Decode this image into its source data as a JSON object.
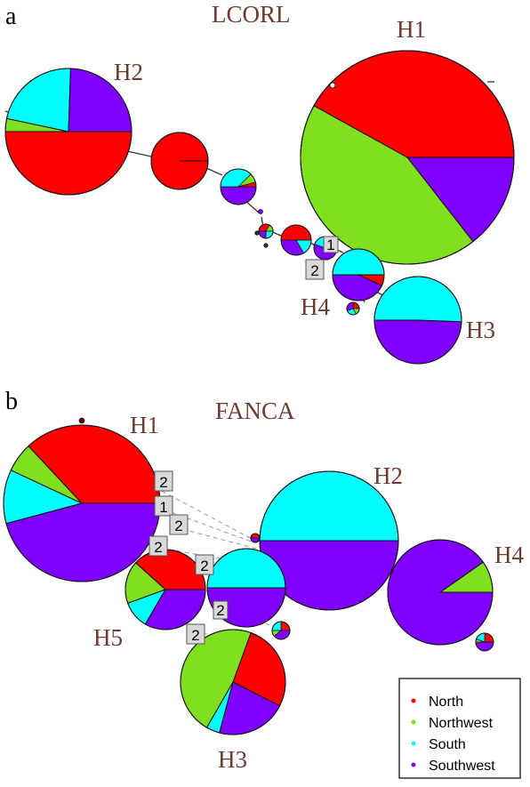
{
  "colors": {
    "north": "#ff0000",
    "northwest": "#80e020",
    "south": "#00ffff",
    "southwest": "#8000ff"
  },
  "panel_a": {
    "letter": "a",
    "gene": "LCORL",
    "labels": {
      "h1": "H1",
      "h2": "H2",
      "h3": "H3",
      "h4": "H4"
    },
    "steps": [
      "2",
      "1"
    ]
  },
  "panel_b": {
    "letter": "b",
    "gene": "FANCA",
    "labels": {
      "h1": "H1",
      "h2": "H2",
      "h3": "H3",
      "h4": "H4",
      "h5": "H5"
    },
    "steps": [
      "2",
      "1",
      "2",
      "2",
      "2",
      "2",
      "2"
    ]
  },
  "legend": {
    "items": [
      "North",
      "Northwest",
      "South",
      "Southwest"
    ]
  }
}
